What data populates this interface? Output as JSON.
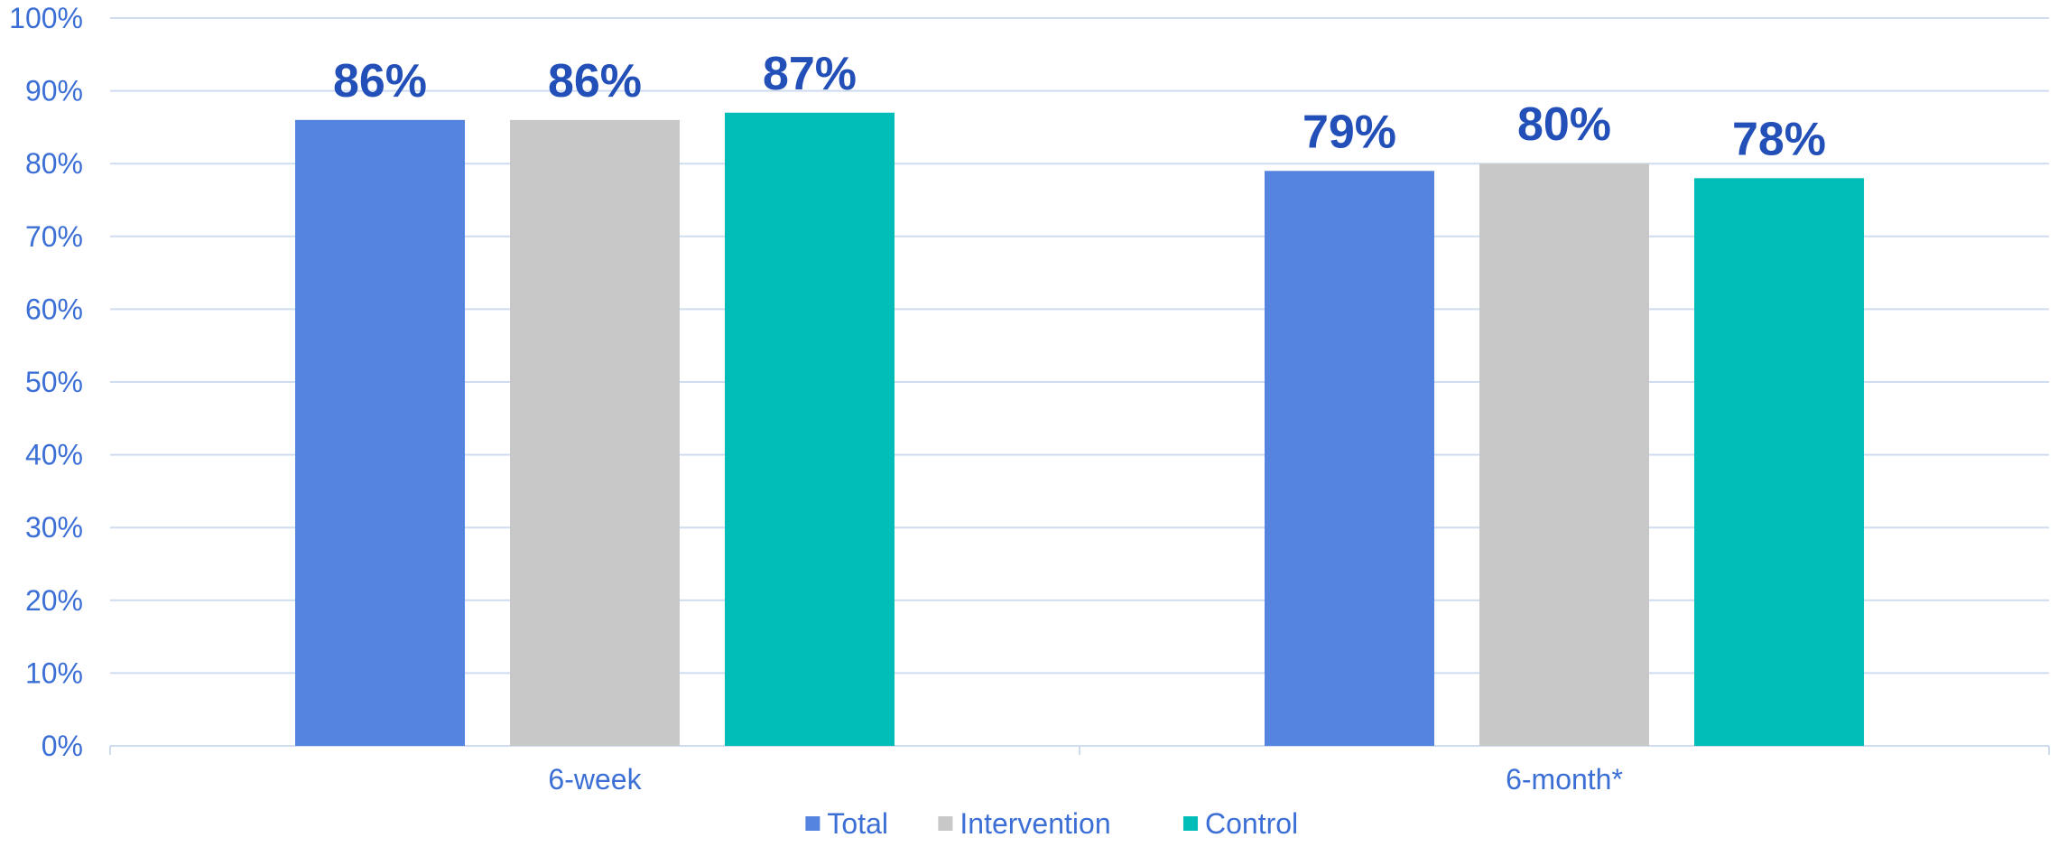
{
  "chart_data": {
    "type": "bar",
    "title": "",
    "xlabel": "",
    "ylabel": "",
    "categories": [
      "6-week",
      "6-month*"
    ],
    "series": [
      {
        "name": "Total",
        "values": [
          86,
          79
        ],
        "color": "#5584E0"
      },
      {
        "name": "Intervention",
        "values": [
          86,
          80
        ],
        "color": "#C8C8C8"
      },
      {
        "name": "Control",
        "values": [
          87,
          78
        ],
        "color": "#00BDB8"
      }
    ],
    "value_format": "percent",
    "ylim": [
      0,
      100
    ],
    "y_ticks": [
      0,
      10,
      20,
      30,
      40,
      50,
      60,
      70,
      80,
      90,
      100
    ],
    "y_tick_labels": [
      "0%",
      "10%",
      "20%",
      "30%",
      "40%",
      "50%",
      "60%",
      "70%",
      "80%",
      "90%",
      "100%"
    ],
    "grid": true,
    "legend_position": "bottom-center",
    "colors": {
      "axis_text": "#3B6FD6",
      "data_label": "#2350B8",
      "gridline": "#CFDCF0"
    }
  }
}
